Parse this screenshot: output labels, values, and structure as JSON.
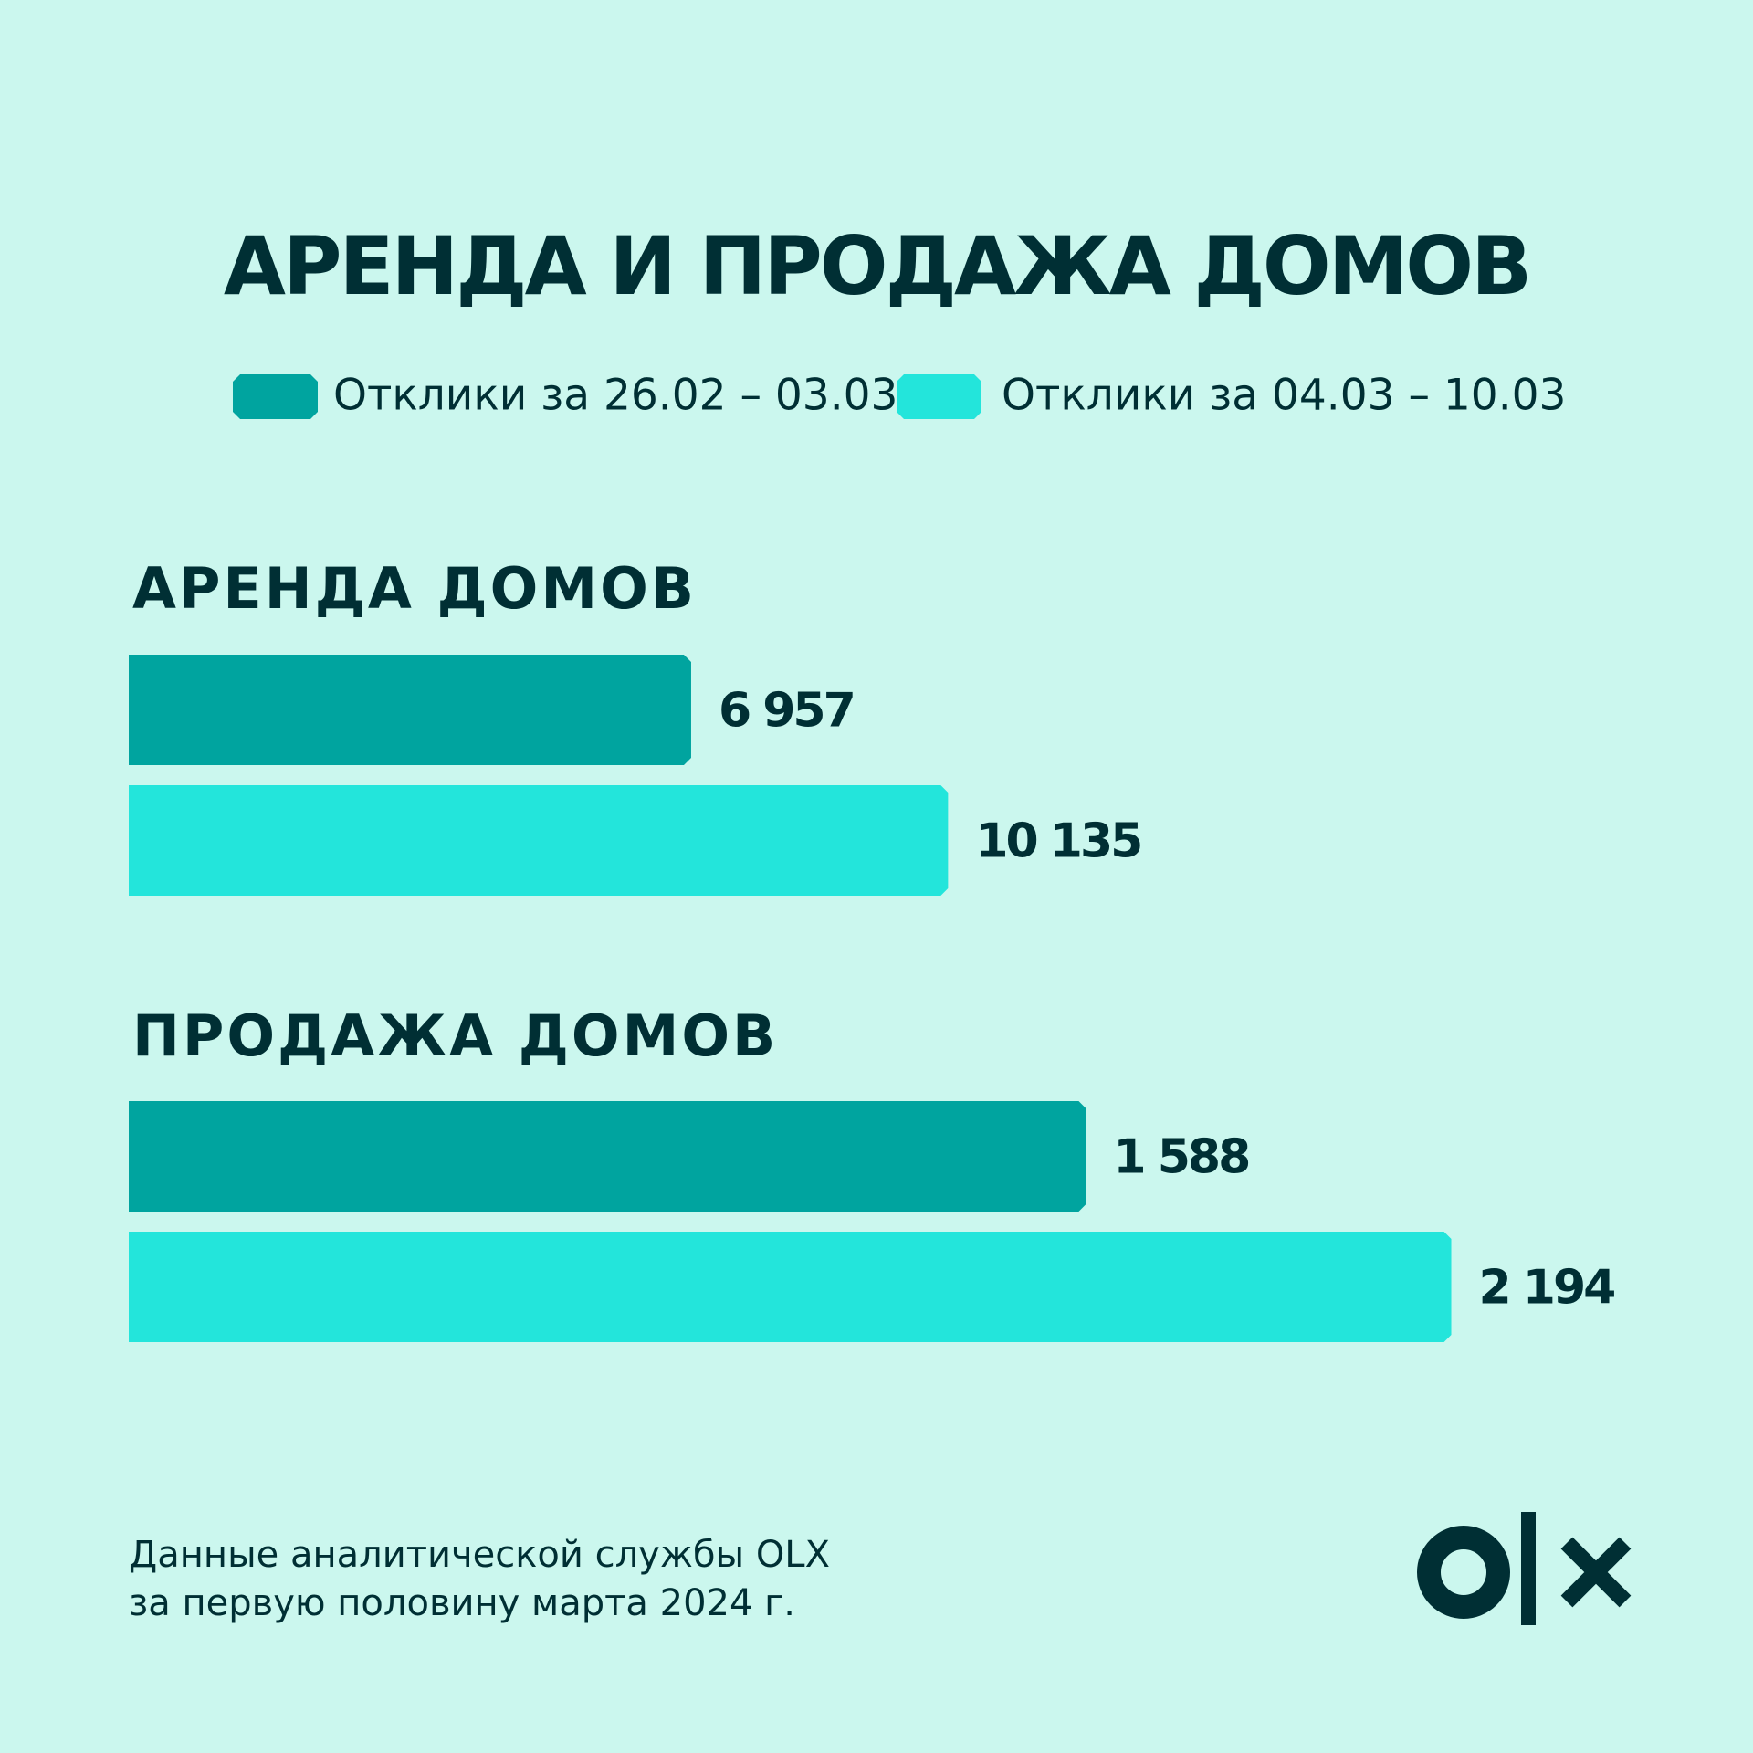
{
  "title": "АРЕНДА И ПРОДАЖА ДОМОВ",
  "chart_data": [
    {
      "type": "bar",
      "orientation": "horizontal",
      "title": "АРЕНДА  ДОМОВ",
      "xlim": [
        0,
        18500
      ],
      "series": [
        {
          "name": "Отклики за 26.02 – 03.03",
          "color": "#00a49f",
          "values": [
            6957
          ],
          "value_labels": [
            "6 957"
          ]
        },
        {
          "name": "Отклики за 04.03 – 10.03",
          "color": "#23e5db",
          "values": [
            10135
          ],
          "value_labels": [
            "10 135"
          ]
        }
      ]
    },
    {
      "type": "bar",
      "orientation": "horizontal",
      "title": "ПРОДАЖА  ДОМОВ",
      "xlim": [
        0,
        2481
      ],
      "series": [
        {
          "color": "#00a49f",
          "values": [
            1588
          ],
          "value_labels": [
            "1 588"
          ]
        },
        {
          "color": "#23e5db",
          "values": [
            2194
          ],
          "value_labels": [
            "2 194"
          ]
        }
      ]
    }
  ],
  "footnote": [
    "Данные аналитической службы OLX",
    "за первую половину марта 2024 г."
  ]
}
